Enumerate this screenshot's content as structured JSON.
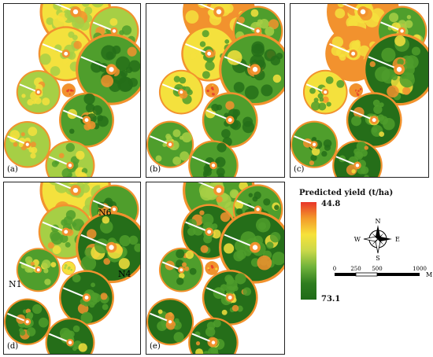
{
  "panels": [
    {
      "label": "(a)",
      "variant": "a"
    },
    {
      "label": "(b)",
      "variant": "b"
    },
    {
      "label": "(c)",
      "variant": "c"
    },
    {
      "label": "(d)",
      "variant": "d"
    },
    {
      "label": "(e)",
      "variant": "e"
    }
  ],
  "field_labels": {
    "n1": "N1",
    "n4": "N4",
    "n6": "N6"
  },
  "legend": {
    "title": "Predicted yield (t/ha)",
    "max": "44.8",
    "min": "73.1",
    "colors": [
      "#e8352a",
      "#f39a2a",
      "#f7e23a",
      "#c9d84a",
      "#6fb23a",
      "#2e7d1f",
      "#1f6b18"
    ]
  },
  "compass": {
    "n": "N",
    "s": "S",
    "e": "E",
    "w": "W"
  },
  "scale": {
    "ticks": [
      "0",
      "250",
      "500",
      "1000"
    ],
    "unit": "M"
  },
  "palette": {
    "red": "#e53b2b",
    "orange": "#f2922e",
    "yellow": "#f4e13d",
    "lightgreen": "#a6cf45",
    "green": "#4f9e2c",
    "darkgreen": "#256e19"
  }
}
